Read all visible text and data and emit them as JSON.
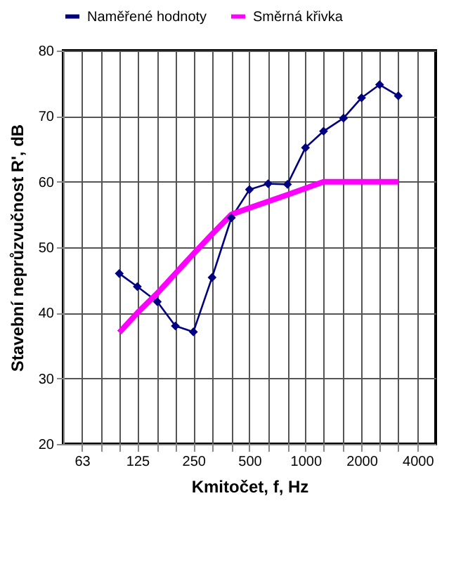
{
  "chart_data": {
    "type": "line",
    "xlabel": "Kmitočet, f, Hz",
    "ylabel": "Stavební neprůzvučnost R', dB",
    "log": "x",
    "grid": true,
    "legend": "top",
    "xlim": [
      50,
      5000
    ],
    "ylim": [
      20,
      80
    ],
    "yticks": [
      20,
      30,
      40,
      50,
      60,
      70,
      80
    ],
    "xticks": [
      63,
      {
        "value": 80,
        "label": null
      },
      {
        "value": 100,
        "label": null
      },
      125,
      {
        "value": 160,
        "label": null
      },
      {
        "value": 200,
        "label": null
      },
      250,
      {
        "value": 315,
        "label": null
      },
      {
        "value": 400,
        "label": null
      },
      500,
      {
        "value": 630,
        "label": null
      },
      {
        "value": 800,
        "label": null
      },
      1000,
      {
        "value": 1250,
        "label": null
      },
      {
        "value": 1600,
        "label": null
      },
      2000,
      {
        "value": 2500,
        "label": null
      },
      {
        "value": 3150,
        "label": null
      },
      4000
    ],
    "x": [
      100,
      125,
      160,
      200,
      250,
      315,
      400,
      500,
      630,
      800,
      1000,
      1250,
      1600,
      2000,
      2500,
      3150
    ],
    "series": [
      {
        "name": "Naměřené hodnoty",
        "color": "#000080",
        "marker": "diamond",
        "values": [
          46,
          44,
          41.7,
          38,
          37.1,
          45.4,
          54.5,
          58.8,
          59.7,
          59.6,
          65.2,
          67.7,
          69.7,
          72.8,
          74.8,
          73.1
        ]
      },
      {
        "name": "Směrná křivka",
        "color": "#ff00ff",
        "marker": "none",
        "values": [
          37,
          40,
          43,
          46,
          49,
          52,
          55,
          56,
          57,
          58,
          59,
          60,
          60,
          60,
          60,
          60
        ]
      }
    ]
  }
}
